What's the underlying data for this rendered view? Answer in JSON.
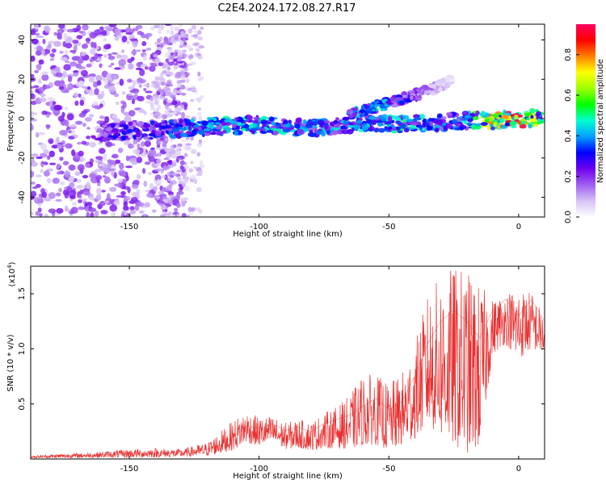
{
  "title": "C2E4.2024.172.08.27.R17",
  "colors": {
    "snr_line": "#e83030",
    "background": "#ffffff",
    "axis": "#000000",
    "colormap": [
      "#ffffff",
      "#d6c2f5",
      "#a060f0",
      "#7000f0",
      "#0000ff",
      "#00a0ff",
      "#00ffd0",
      "#00ff00",
      "#a0ff00",
      "#ffff00",
      "#ff8000",
      "#ff0000",
      "#ff0060"
    ]
  },
  "chart_data": [
    {
      "type": "heatmap",
      "title": "C2E4.2024.172.08.27.R17",
      "xlabel": "Height of straight line (km)",
      "ylabel": "Frequency (Hz)",
      "xlim": [
        -188,
        10
      ],
      "ylim": [
        -50,
        48
      ],
      "x_ticks": [
        -150,
        -100,
        -50,
        0
      ],
      "y_ticks": [
        -40,
        -20,
        0,
        20,
        40
      ],
      "grid": false,
      "colorbar": {
        "label": "Normalized spectral amplitude",
        "range": [
          0.0,
          0.95
        ],
        "ticks": [
          "0.0",
          "0.2",
          "0.4",
          "0.6",
          "0.8"
        ],
        "tick_values": [
          0.0,
          0.2,
          0.4,
          0.6,
          0.8
        ]
      },
      "ridges": [
        {
          "x": [
            -162,
            -140,
            -120,
            -100,
            -80,
            -60,
            -45,
            -30,
            -20,
            -10,
            0,
            9
          ],
          "freq": [
            -7,
            -6,
            -4,
            -3,
            -5,
            -2,
            -3,
            -2,
            -1,
            -1,
            0,
            0
          ],
          "amplitude": [
            0.25,
            0.3,
            0.4,
            0.45,
            0.35,
            0.4,
            0.45,
            0.35,
            0.4,
            0.7,
            0.85,
            0.5
          ]
        },
        {
          "x": [
            -65,
            -55,
            -45,
            -35,
            -25
          ],
          "freq": [
            2,
            6,
            10,
            14,
            20
          ],
          "amplitude": [
            0.35,
            0.45,
            0.3,
            0.15,
            0.05
          ]
        }
      ]
    },
    {
      "type": "line",
      "title": "",
      "xlabel": "Height of straight line (km)",
      "ylabel": "SNR (10 * v/v)",
      "y_multiplier_label": "(x10",
      "y_multiplier_exp": "4",
      "xlim": [
        -188,
        10
      ],
      "ylim": [
        0,
        17500
      ],
      "x_ticks": [
        -150,
        -100,
        -50,
        0
      ],
      "y_ticks": [
        5000,
        10000,
        15000
      ],
      "y_tick_labels": [
        "0.5",
        "1.0",
        "1.5"
      ],
      "grid": false,
      "series": [
        {
          "x": [
            -188,
            -175,
            -165,
            -150,
            -140,
            -130,
            -120,
            -115,
            -110,
            -105,
            -100,
            -95,
            -90,
            -85,
            -80,
            -75,
            -70,
            -65,
            -60,
            -55,
            -50,
            -45,
            -40,
            -35,
            -30,
            -25,
            -20,
            -15,
            -10,
            -5,
            0,
            5,
            10
          ],
          "y": [
            200,
            300,
            350,
            450,
            500,
            650,
            900,
            1300,
            2000,
            3000,
            2800,
            3200,
            2600,
            2900,
            2500,
            3200,
            3600,
            4000,
            4800,
            5500,
            4500,
            5200,
            7500,
            10500,
            12500,
            13500,
            12500,
            11000,
            13500,
            14500,
            13000,
            14500,
            12500
          ],
          "envelope_max": [
            300,
            500,
            600,
            900,
            1000,
            900,
            1500,
            2500,
            3500,
            4400,
            3800,
            3900,
            3300,
            3600,
            3400,
            4200,
            4800,
            5800,
            7700,
            7700,
            6800,
            7800,
            10500,
            15000,
            16700,
            17500,
            17200,
            15900,
            14500,
            15200,
            15600,
            15200,
            13000
          ],
          "envelope_min": [
            100,
            100,
            120,
            150,
            150,
            200,
            300,
            500,
            800,
            1500,
            1200,
            1500,
            900,
            1000,
            800,
            1000,
            1000,
            900,
            1200,
            1300,
            800,
            1200,
            1800,
            3000,
            2000,
            1200,
            500,
            1000,
            9500,
            10500,
            9000,
            10000,
            9500
          ]
        }
      ]
    }
  ]
}
